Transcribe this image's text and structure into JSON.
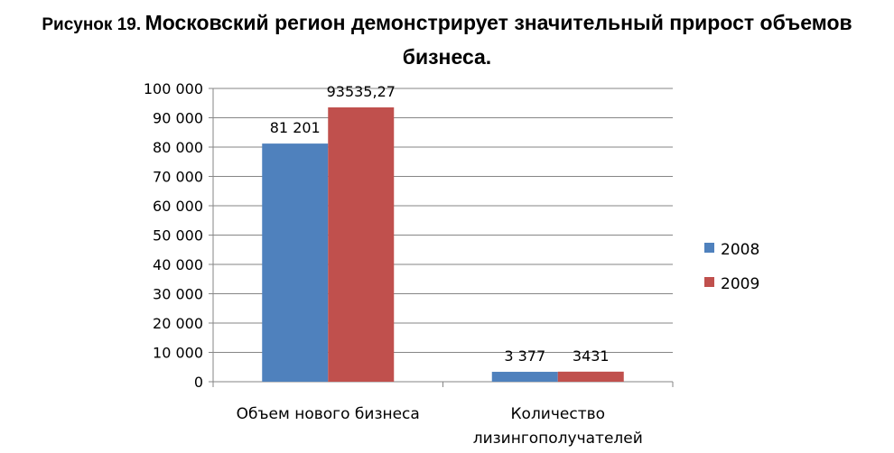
{
  "title": {
    "prefix": "Рисунок 19.",
    "main": "Московский регион демонстрирует значительный прирост объемов",
    "line2": "бизнеса."
  },
  "chart_data": {
    "type": "bar",
    "categories": [
      [
        "Объем нового бизнеса"
      ],
      [
        "Количество",
        "лизингополучателей"
      ]
    ],
    "series": [
      {
        "name": "2008",
        "values": [
          81201,
          3377
        ],
        "labels": [
          "81 201",
          "3 377"
        ],
        "color": "#4f81bd"
      },
      {
        "name": "2009",
        "values": [
          93535.27,
          3431
        ],
        "labels": [
          "93535,27",
          "3431"
        ],
        "color": "#c0504d"
      }
    ],
    "ylim": [
      0,
      100000
    ],
    "yticks": [
      0,
      10000,
      20000,
      30000,
      40000,
      50000,
      60000,
      70000,
      80000,
      90000,
      100000
    ],
    "ytick_labels": [
      "0",
      "10 000",
      "20 000",
      "30 000",
      "40 000",
      "50 000",
      "60 000",
      "70 000",
      "80 000",
      "90 000",
      "100 000"
    ],
    "grid": true,
    "legend_position": "right"
  }
}
